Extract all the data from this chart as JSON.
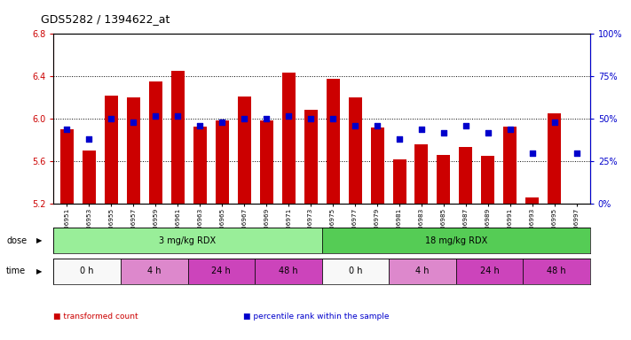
{
  "title": "GDS5282 / 1394622_at",
  "samples": [
    "GSM306951",
    "GSM306953",
    "GSM306955",
    "GSM306957",
    "GSM306959",
    "GSM306961",
    "GSM306963",
    "GSM306965",
    "GSM306967",
    "GSM306969",
    "GSM306971",
    "GSM306973",
    "GSM306975",
    "GSM306977",
    "GSM306979",
    "GSM306981",
    "GSM306983",
    "GSM306985",
    "GSM306987",
    "GSM306989",
    "GSM306991",
    "GSM306993",
    "GSM306995",
    "GSM306997"
  ],
  "bar_values": [
    5.9,
    5.7,
    6.22,
    6.2,
    6.35,
    6.45,
    5.93,
    5.99,
    6.21,
    5.99,
    6.44,
    6.09,
    6.38,
    6.2,
    5.92,
    5.62,
    5.76,
    5.66,
    5.74,
    5.65,
    5.93,
    5.26,
    6.05,
    5.2
  ],
  "blue_values": [
    44,
    38,
    50,
    48,
    52,
    52,
    46,
    48,
    50,
    50,
    52,
    50,
    50,
    46,
    46,
    38,
    44,
    42,
    46,
    42,
    44,
    30,
    48,
    30
  ],
  "ylim_left": [
    5.2,
    6.8
  ],
  "ylim_right": [
    0,
    100
  ],
  "yticks_left": [
    5.2,
    5.6,
    6.0,
    6.4,
    6.8
  ],
  "yticks_right": [
    0,
    25,
    50,
    75,
    100
  ],
  "ytick_labels_right": [
    "0%",
    "25%",
    "50%",
    "75%",
    "100%"
  ],
  "bar_color": "#cc0000",
  "blue_color": "#0000cc",
  "bar_width": 0.6,
  "background_color": "#ffffff",
  "dose_groups": [
    {
      "label": "3 mg/kg RDX",
      "start": 0,
      "end": 12,
      "color": "#99ee99"
    },
    {
      "label": "18 mg/kg RDX",
      "start": 12,
      "end": 24,
      "color": "#55cc55"
    }
  ],
  "time_groups": [
    {
      "label": "0 h",
      "start": 0,
      "end": 3,
      "color": "#f8f8f8"
    },
    {
      "label": "4 h",
      "start": 3,
      "end": 6,
      "color": "#dd88cc"
    },
    {
      "label": "24 h",
      "start": 6,
      "end": 9,
      "color": "#cc44bb"
    },
    {
      "label": "48 h",
      "start": 9,
      "end": 12,
      "color": "#cc44bb"
    },
    {
      "label": "0 h",
      "start": 12,
      "end": 15,
      "color": "#f8f8f8"
    },
    {
      "label": "4 h",
      "start": 15,
      "end": 18,
      "color": "#dd88cc"
    },
    {
      "label": "24 h",
      "start": 18,
      "end": 21,
      "color": "#cc44bb"
    },
    {
      "label": "48 h",
      "start": 21,
      "end": 24,
      "color": "#cc44bb"
    }
  ],
  "legend_items": [
    {
      "label": "transformed count",
      "color": "#cc0000"
    },
    {
      "label": "percentile rank within the sample",
      "color": "#0000cc"
    }
  ]
}
